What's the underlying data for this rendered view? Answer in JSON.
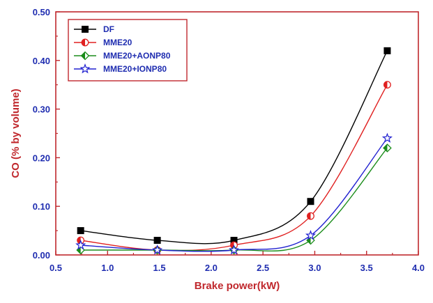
{
  "chart_data": {
    "type": "line",
    "xlabel": "Brake power(kW)",
    "ylabel": "CO (% by volume)",
    "xlim": [
      0.5,
      4.0
    ],
    "ylim": [
      0.0,
      0.5
    ],
    "xticks": [
      0.5,
      1.0,
      1.5,
      2.0,
      2.5,
      3.0,
      3.5,
      4.0
    ],
    "yticks": [
      0.0,
      0.1,
      0.2,
      0.3,
      0.4,
      0.5
    ],
    "xtick_labels": [
      "0.5",
      "1.0",
      "1.5",
      "2.0",
      "2.5",
      "3.0",
      "3.5",
      "4.0"
    ],
    "ytick_labels": [
      "0.00",
      "0.10",
      "0.20",
      "0.30",
      "0.40",
      "0.50"
    ],
    "grid": false,
    "legend_position": "top-left",
    "x": [
      0.74,
      1.48,
      2.22,
      2.96,
      3.7
    ],
    "series": [
      {
        "name": "DF",
        "values": [
          0.05,
          0.03,
          0.03,
          0.11,
          0.42
        ],
        "color": "#000000",
        "marker": "square"
      },
      {
        "name": "MME20",
        "values": [
          0.03,
          0.01,
          0.02,
          0.08,
          0.35
        ],
        "color": "#e02020",
        "marker": "half-circle"
      },
      {
        "name": "MME20+AONP80",
        "values": [
          0.01,
          0.01,
          0.01,
          0.03,
          0.22
        ],
        "color": "#1a8c1a",
        "marker": "half-diamond"
      },
      {
        "name": "MME20+IONP80",
        "values": [
          0.02,
          0.01,
          0.01,
          0.04,
          0.24
        ],
        "color": "#2020d0",
        "marker": "star"
      }
    ],
    "colors": {
      "axis": "#c0282d",
      "tick_label": "#1f2db0",
      "axis_title": "#c0282d",
      "legend_text": "#1f2db0"
    }
  }
}
